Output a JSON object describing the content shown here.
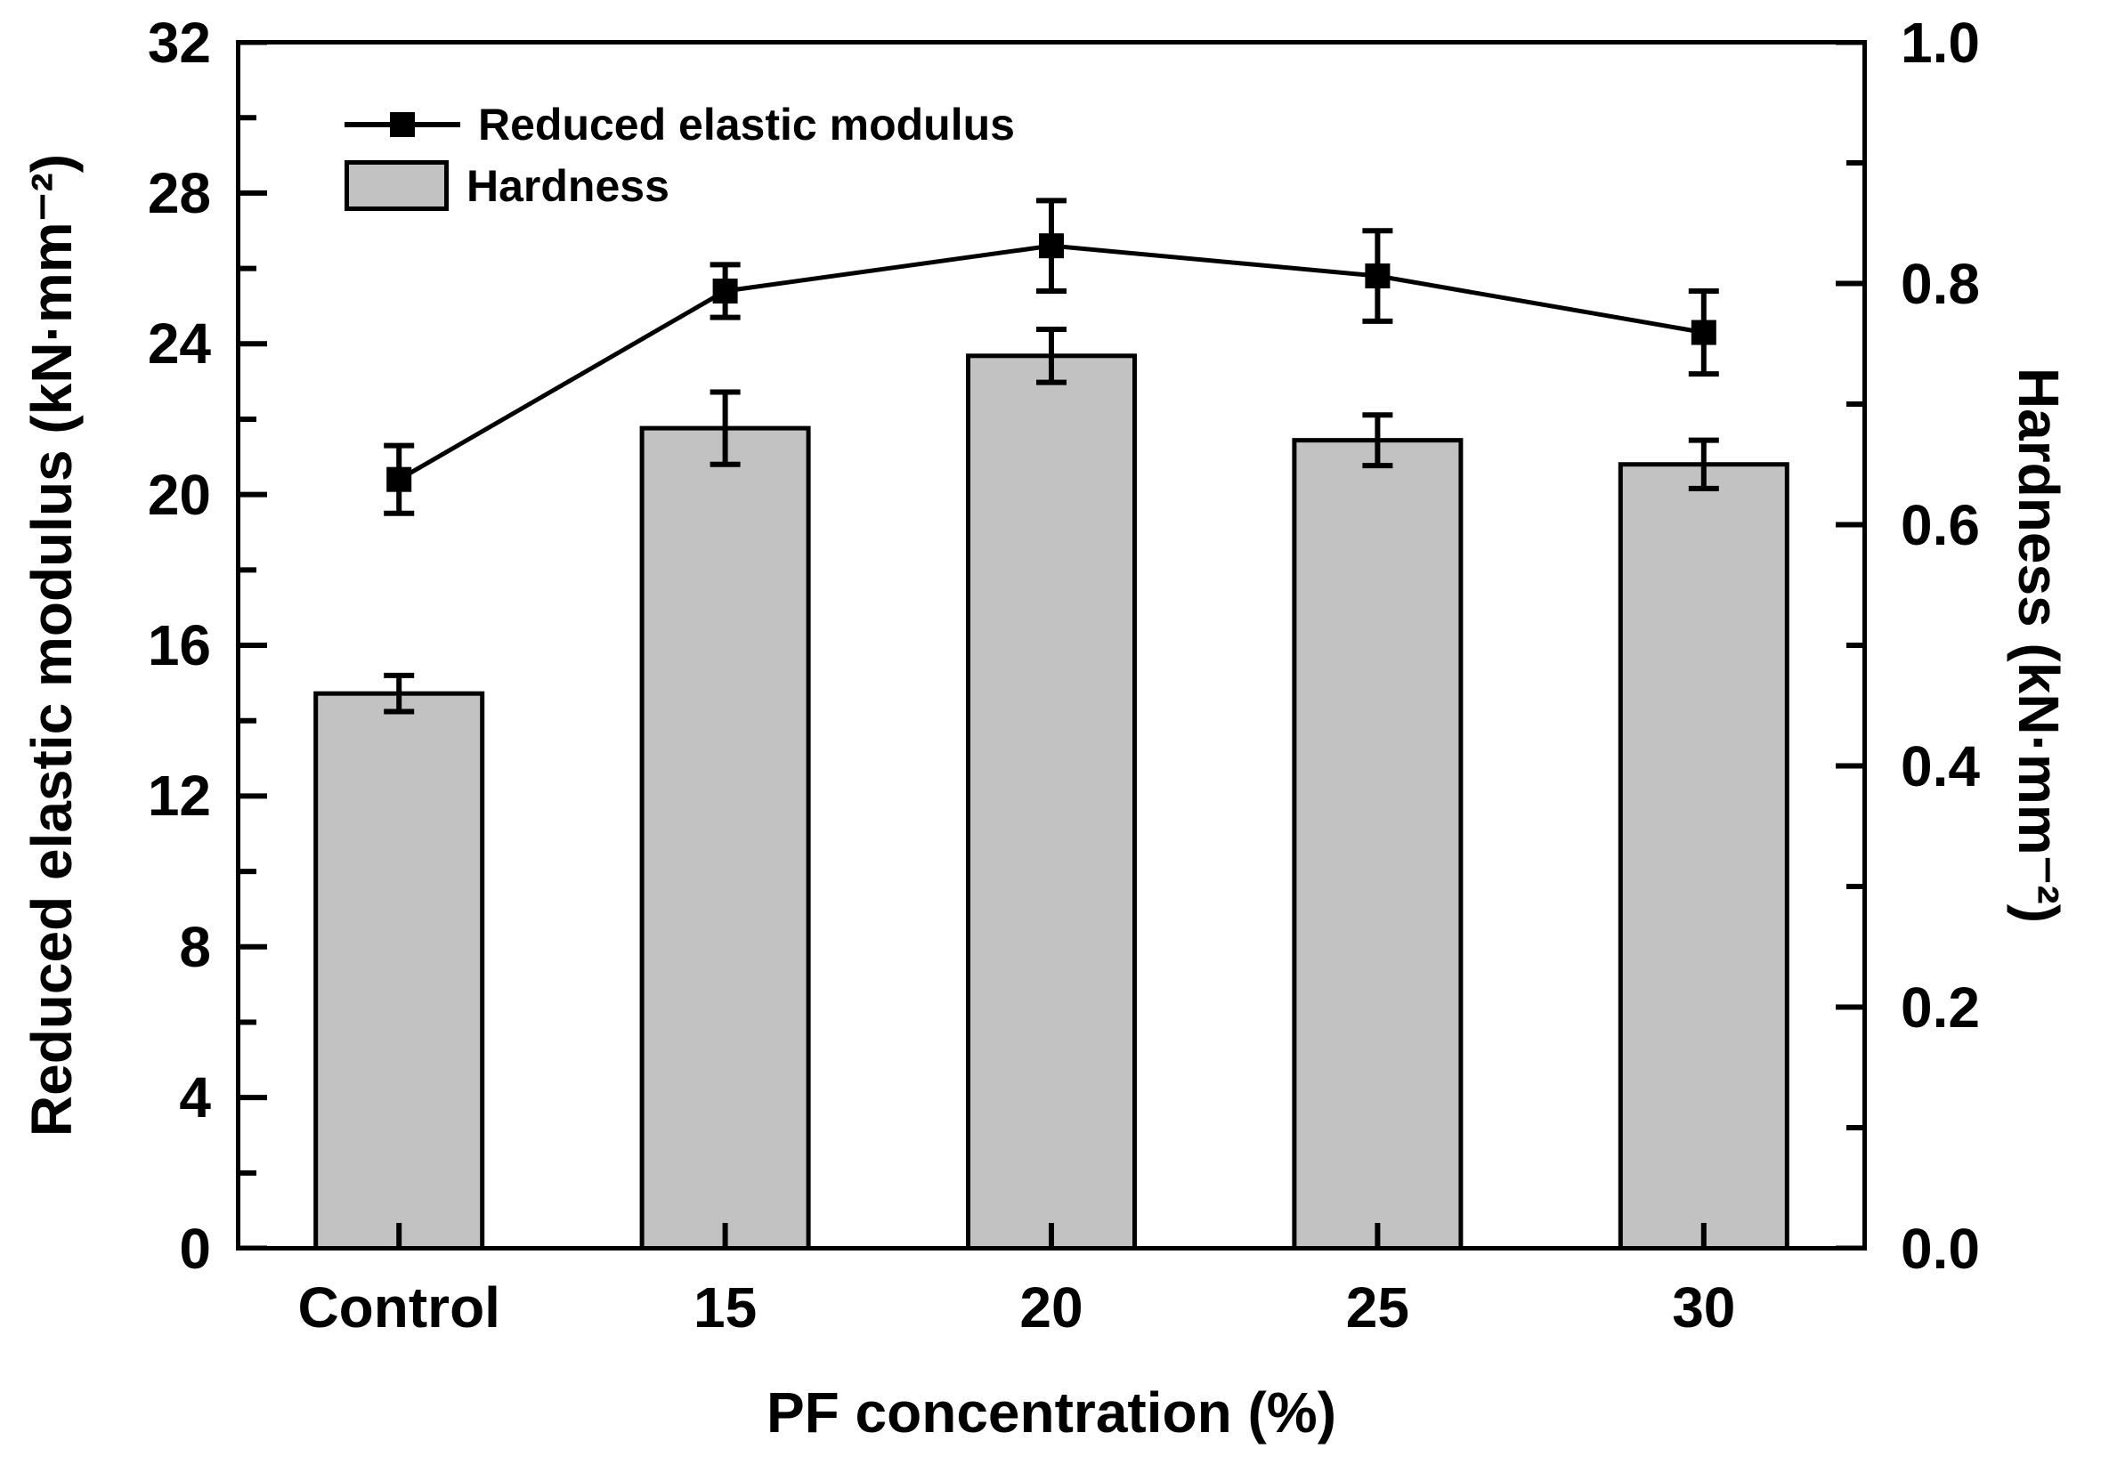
{
  "figure": {
    "background": "#ffffff",
    "text_color": "#000000"
  },
  "legend": {
    "position": "top-left-inside",
    "items": [
      {
        "label": "Reduced elastic modulus",
        "type": "line-marker",
        "marker": "filled-square",
        "color": "#000000"
      },
      {
        "label": "Hardness",
        "type": "bar-swatch",
        "color": "#c2c2c2"
      }
    ]
  },
  "chart_data": {
    "type": "bar",
    "subtype": "dual-axis bar + line with error bars",
    "categories": [
      "Control",
      "15",
      "20",
      "25",
      "30"
    ],
    "series": [
      {
        "name": "Reduced elastic modulus",
        "type": "line",
        "axis": "left",
        "marker": "filled-square",
        "color": "#000000",
        "values": [
          20.4,
          25.4,
          26.6,
          25.8,
          24.3
        ],
        "errors": [
          0.9,
          0.7,
          1.2,
          1.2,
          1.1
        ]
      },
      {
        "name": "Hardness",
        "type": "bar",
        "axis": "right",
        "color": "#c2c2c2",
        "border_color": "#000000",
        "values": [
          0.46,
          0.68,
          0.74,
          0.67,
          0.65
        ],
        "errors": [
          0.015,
          0.03,
          0.022,
          0.021,
          0.02
        ]
      }
    ],
    "x_axis": {
      "title": "PF concentration (%)"
    },
    "left_axis": {
      "title": "Reduced elastic modulus (kN·mm⁻²)",
      "min": 0,
      "max": 32,
      "major_step": 4,
      "minor_step": 2,
      "tick_labels": [
        "0",
        "4",
        "8",
        "12",
        "16",
        "20",
        "24",
        "28",
        "32"
      ]
    },
    "right_axis": {
      "title": "Hardness (kN·mm⁻²)",
      "min": 0.0,
      "max": 1.0,
      "major_step": 0.2,
      "minor_step": 0.1,
      "tick_labels": [
        "0.0",
        "0.2",
        "0.4",
        "0.6",
        "0.8",
        "1.0"
      ]
    },
    "grid": false,
    "legend_position": "top-left-inside"
  }
}
